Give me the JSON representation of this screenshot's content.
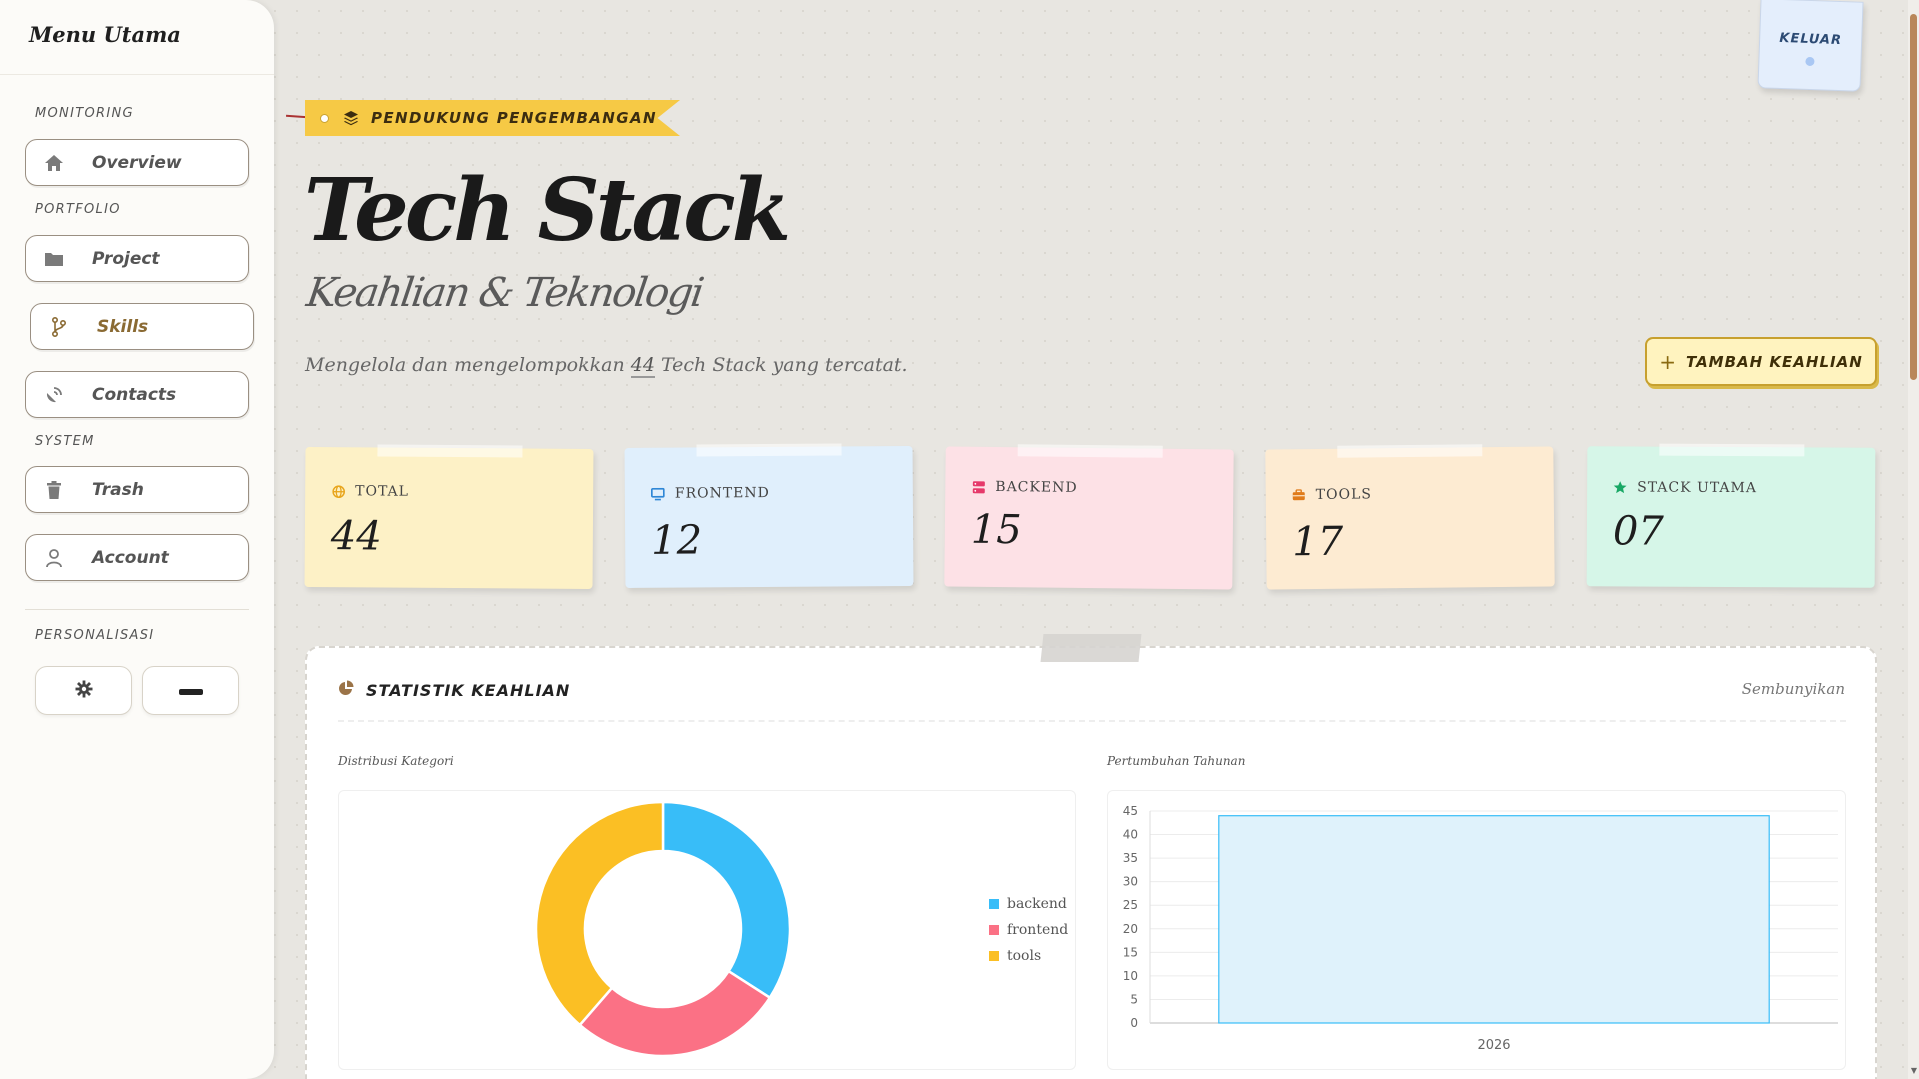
{
  "sidebar": {
    "title": "Menu Utama",
    "sections": {
      "monitoring": "MONITORING",
      "portfolio": "PORTFOLIO",
      "system": "SYSTEM",
      "personalization": "PERSONALISASI"
    },
    "items": [
      {
        "label": "Overview",
        "icon": "home-icon"
      },
      {
        "label": "Project",
        "icon": "folder-icon"
      },
      {
        "label": "Skills",
        "icon": "git-branch-icon",
        "active": true
      },
      {
        "label": "Contacts",
        "icon": "satellite-dish-icon"
      },
      {
        "label": "Trash",
        "icon": "trash-icon"
      },
      {
        "label": "Account",
        "icon": "user-icon"
      }
    ]
  },
  "header": {
    "tag": "PENDUKUNG PENGEMBANGAN",
    "title": "Tech Stack",
    "subtitle": "Keahlian & Teknologi",
    "desc_before": "Mengelola dan mengelompokkan ",
    "desc_count": "44",
    "desc_after": " Tech Stack yang tercatat.",
    "add_button": "TAMBAH KEAHLIAN",
    "logout": "KELUAR"
  },
  "stats": [
    {
      "label": "TOTAL",
      "value": "44",
      "icon": "globe-icon",
      "color": "#fdf1c6",
      "icon_color": "#e8a51c"
    },
    {
      "label": "FRONTEND",
      "value": "12",
      "icon": "monitor-icon",
      "color": "#e0effc",
      "icon_color": "#2f87d6"
    },
    {
      "label": "BACKEND",
      "value": "15",
      "icon": "server-icon",
      "color": "#fde1e6",
      "icon_color": "#e6396a"
    },
    {
      "label": "TOOLS",
      "value": "17",
      "icon": "toolbox-icon",
      "color": "#fdebd2",
      "icon_color": "#e07b1a"
    },
    {
      "label": "STACK UTAMA",
      "value": "07",
      "icon": "star-icon",
      "color": "#d6f6e8",
      "icon_color": "#18a865"
    }
  ],
  "panel": {
    "title": "STATISTIK KEAHLIAN",
    "hide": "Sembunyikan",
    "donut_label": "Distribusi Kategori",
    "bar_label": "Pertumbuhan Tahunan"
  },
  "chart_data": [
    {
      "type": "pie",
      "categories": [
        "backend",
        "frontend",
        "tools"
      ],
      "values": [
        15,
        12,
        17
      ],
      "colors": [
        "#38bdf8",
        "#fb7185",
        "#fbbf24"
      ],
      "legend": "right"
    },
    {
      "type": "bar",
      "categories": [
        "2026"
      ],
      "values": [
        44
      ],
      "ylim": [
        0,
        45
      ],
      "yticks": [
        0,
        5,
        10,
        15,
        20,
        25,
        30,
        35,
        40,
        45
      ],
      "grid": true,
      "colors": [
        "#dff2fb"
      ]
    }
  ]
}
